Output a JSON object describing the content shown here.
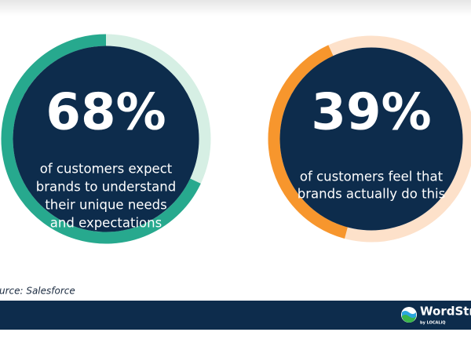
{
  "chart_data": [
    {
      "type": "donut",
      "values": [
        68
      ],
      "value_labels": [
        "68%"
      ],
      "color": "#27a98e",
      "track_color": "#d6efe4",
      "caption_lines": [
        "of customers expect",
        "brands to understand",
        "their unique needs",
        "and expectations"
      ]
    },
    {
      "type": "donut",
      "values": [
        39
      ],
      "value_labels": [
        "39%"
      ],
      "color": "#f7962d",
      "track_color": "#fde1ca",
      "caption_lines": [
        "of customers feel that",
        "brands actually do this"
      ]
    }
  ],
  "source": "Source: Salesforce",
  "logo": {
    "name": "WordStream",
    "tagline": "by LOCALiQ"
  }
}
